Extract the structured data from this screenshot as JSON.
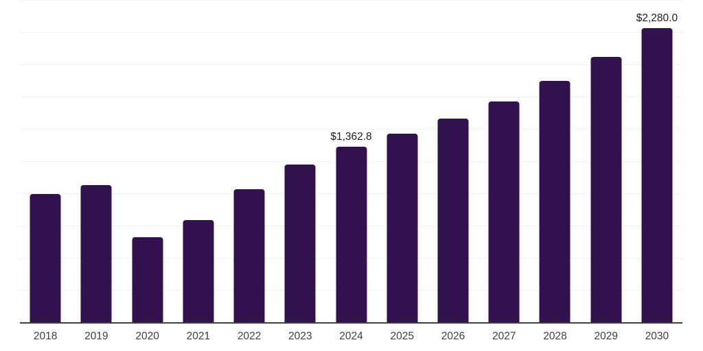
{
  "chart_data": {
    "type": "bar",
    "title": "",
    "xlabel": "",
    "ylabel": "",
    "categories": [
      "2018",
      "2019",
      "2020",
      "2021",
      "2022",
      "2023",
      "2024",
      "2025",
      "2026",
      "2027",
      "2028",
      "2029",
      "2030"
    ],
    "values": [
      995,
      1065,
      660,
      795,
      1030,
      1225,
      1362.8,
      1465,
      1580,
      1715,
      1875,
      2060,
      2280
    ],
    "point_labels": [
      "",
      "",
      "",
      "",
      "",
      "",
      "$1,362.8",
      "",
      "",
      "",
      "",
      "",
      "$2,280.0"
    ],
    "ylim": [
      0,
      2500
    ],
    "gridline_step": 250,
    "grid": true,
    "legend": false,
    "y_axis_tick_labels_visible": false,
    "colors": {
      "bar": "#32124E",
      "gridline": "#f2f2f2",
      "axis_line": "#3d3d3d",
      "tick_label": "#3f3f3f",
      "value_label": "#1c1c1c",
      "background": "#ffffff"
    }
  }
}
